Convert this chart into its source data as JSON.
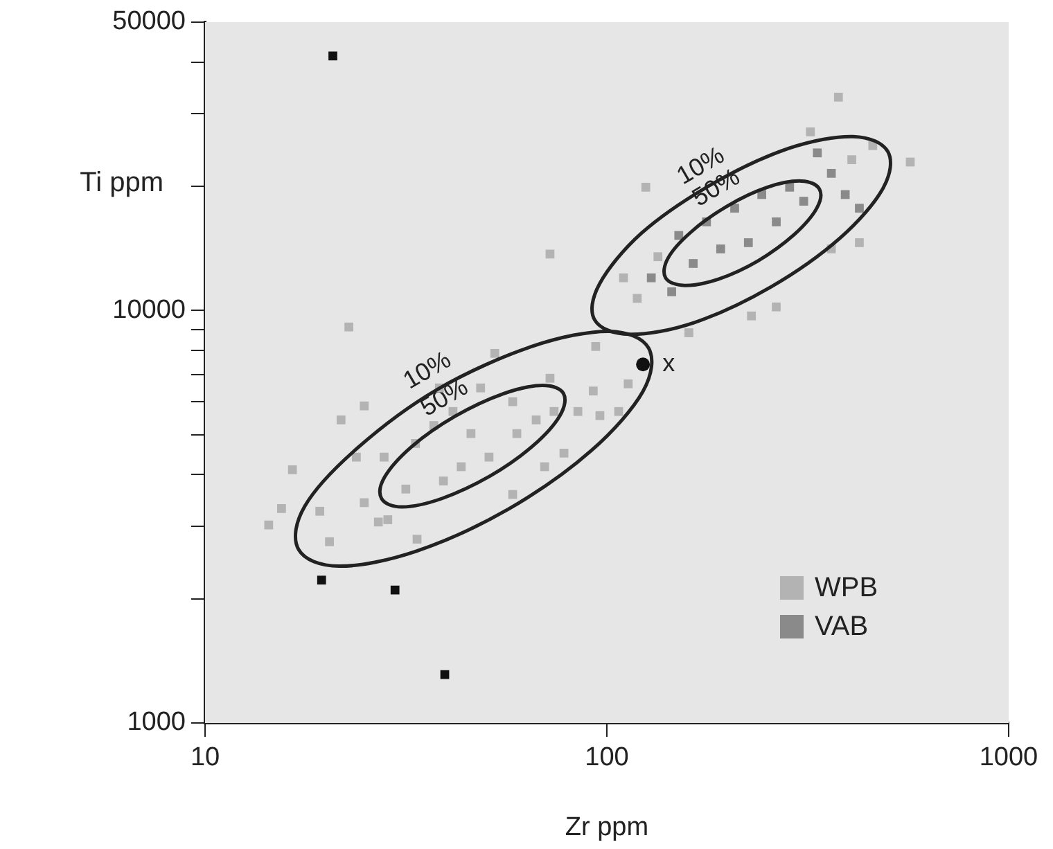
{
  "chart_data": {
    "type": "scatter",
    "xlabel": "Zr ppm",
    "ylabel": "Ti ppm",
    "log": "xy",
    "xlim": [
      10,
      1000
    ],
    "ylim": [
      1000,
      50000
    ],
    "xticks": [
      10,
      100,
      1000
    ],
    "yticks": [
      1000,
      {
        "value": 2000,
        "label": null
      },
      {
        "value": 3000,
        "label": null
      },
      {
        "value": 4000,
        "label": null
      },
      {
        "value": 5000,
        "label": null
      },
      {
        "value": 6000,
        "label": null
      },
      {
        "value": 7000,
        "label": null
      },
      {
        "value": 8000,
        "label": null
      },
      {
        "value": 9000,
        "label": null
      },
      10000,
      {
        "value": 20000,
        "label": null
      },
      {
        "value": 30000,
        "label": null
      },
      {
        "value": 40000,
        "label": null
      },
      50000
    ],
    "grid": false,
    "legend": "bottom right",
    "marker": "square",
    "series": [
      {
        "name": "WPB",
        "color": "#b3b3b3",
        "x": [
          14.4,
          15.5,
          16.5,
          21.8,
          24.9,
          20.4,
          33.7,
          19.3,
          27.0,
          28.5,
          24.9,
          23.8,
          27.9,
          33.4,
          37.1,
          41.4,
          45.9,
          50.9,
          43.4,
          39.2,
          59.7,
          66.7,
          73.9,
          58.3,
          48.5,
          38.3,
          70.0,
          58.3,
          31.6,
          78.2,
          84.7,
          96.1,
          113,
          92.5,
          107,
          72.2,
          52.6,
          93.8,
          160,
          72.2,
          22.8,
          119,
          110,
          134,
          407,
          459,
          321,
          425,
          362,
          569,
          377,
          125,
          264,
          229
        ],
        "values": [
          3020,
          3310,
          4110,
          5430,
          5870,
          2750,
          2790,
          3260,
          3070,
          3110,
          3420,
          4410,
          4410,
          4760,
          5260,
          5690,
          5030,
          4410,
          4180,
          3860,
          5030,
          5430,
          5690,
          6010,
          6490,
          6490,
          4180,
          3580,
          3690,
          4510,
          5690,
          5560,
          6640,
          6380,
          5690,
          6850,
          7870,
          8180,
          8830,
          13700,
          9120,
          10700,
          12000,
          13500,
          23200,
          25100,
          27100,
          14600,
          14100,
          22900,
          32900,
          19900,
          10200,
          9700
        ]
      },
      {
        "name": "VAB",
        "color": "#8a8a8a",
        "x": [
          151,
          177,
          208,
          243,
          285,
          192,
          164,
          225,
          264,
          309,
          129,
          145,
          362,
          334,
          392,
          425
        ],
        "values": [
          15200,
          16400,
          17700,
          19100,
          19900,
          14100,
          13000,
          14600,
          16400,
          18400,
          12000,
          11100,
          21500,
          24100,
          19100,
          17700
        ]
      },
      {
        "color": "#111111",
        "x": [
          20.8,
          19.5,
          29.7,
          39.5
        ],
        "values": [
          41400,
          2220,
          2100,
          1310
        ]
      },
      {
        "color": "#111111",
        "marker": "circle",
        "x": [
          123
        ],
        "values": [
          7400
        ]
      }
    ],
    "annotations": [
      "10%",
      "50%",
      "10%",
      "50%",
      "x"
    ]
  }
}
